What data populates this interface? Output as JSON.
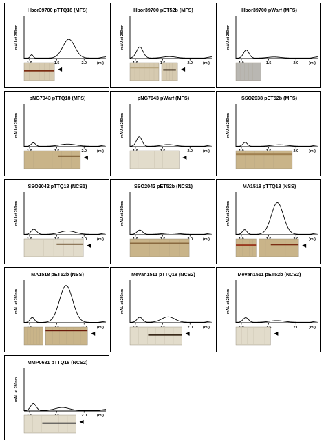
{
  "y_axis_label": "mAU at 280nm",
  "chart_data": [
    {
      "type": "line",
      "title": "Hbor39700 pTTQ18 (MFS)",
      "x_unit": "(ml)",
      "xlim": [
        0.9,
        2.4
      ],
      "ylim": [
        0,
        10
      ],
      "xticks": [
        "1.0",
        "1.5",
        "2.0"
      ],
      "peaks": [
        {
          "pos": 1.04,
          "h": 0.8,
          "w": 0.025
        },
        {
          "pos": 1.72,
          "h": 4.4,
          "w": 0.11
        }
      ],
      "base": 0.1,
      "gels": [
        {
          "w": 0.42,
          "tone": "light",
          "bands": [
            {
              "y": 0.45,
              "x0": 0.0,
              "x1": 1.0,
              "c": "#7a2c12"
            }
          ]
        }
      ],
      "arrow": true
    },
    {
      "type": "line",
      "title": "Hbor39700 pET52b (MFS)",
      "x_unit": "(ml)",
      "xlim": [
        0.9,
        2.4
      ],
      "ylim": [
        0,
        10
      ],
      "xticks": [
        "1.0",
        "1.5",
        "2.0"
      ],
      "peaks": [
        {
          "pos": 1.08,
          "h": 2.6,
          "w": 0.06
        },
        {
          "pos": 1.62,
          "h": 0.35,
          "w": 0.12
        }
      ],
      "base": 0.1,
      "gels": [
        {
          "w": 0.4,
          "tone": "light",
          "bands": [
            {
              "y": 0.28,
              "x0": 0.0,
              "x1": 1.0,
              "c": "#b8a680"
            }
          ]
        },
        {
          "w": 0.22,
          "tone": "light",
          "bands": [
            {
              "y": 0.4,
              "x0": 0.1,
              "x1": 0.9,
              "c": "#3a2a1a"
            }
          ]
        }
      ],
      "arrow": true
    },
    {
      "type": "line",
      "title": "Hbor39700 pWarf (MFS)",
      "x_unit": "(ml)",
      "xlim": [
        0.9,
        2.4
      ],
      "ylim": [
        0,
        10
      ],
      "xticks": [
        "1.0",
        "1.5",
        "2.0"
      ],
      "peaks": [
        {
          "pos": 1.09,
          "h": 1.9,
          "w": 0.05
        },
        {
          "pos": 1.6,
          "h": 0.25,
          "w": 0.12
        }
      ],
      "base": 0.1,
      "gels": [
        {
          "w": 0.35,
          "tone": "grey",
          "bands": []
        }
      ],
      "arrow": false
    },
    {
      "type": "line",
      "title": "pNG7043 pTTQ18 (MFS)",
      "x_unit": "(ml)",
      "xlim": [
        0.9,
        2.4
      ],
      "ylim": [
        0,
        10
      ],
      "xticks": [
        "1.0",
        "1.5",
        "2.0"
      ],
      "peaks": [
        {
          "pos": 1.07,
          "h": 0.8,
          "w": 0.04
        },
        {
          "pos": 1.7,
          "h": 0.5,
          "w": 0.15
        }
      ],
      "base": 0.1,
      "gels": [
        {
          "w": 0.78,
          "tone": "tan",
          "bands": [
            {
              "y": 0.3,
              "x0": 0.6,
              "x1": 1.0,
              "c": "#7a5a30"
            }
          ]
        }
      ],
      "arrow": true
    },
    {
      "type": "line",
      "title": "pNG7043 pWarf (MFS)",
      "x_unit": "(ml)",
      "xlim": [
        0.9,
        2.4
      ],
      "ylim": [
        0,
        10
      ],
      "xticks": [
        "1.0",
        "1.5",
        "2.0"
      ],
      "peaks": [
        {
          "pos": 1.07,
          "h": 2.2,
          "w": 0.05
        },
        {
          "pos": 1.6,
          "h": 0.4,
          "w": 0.12
        }
      ],
      "base": 0.1,
      "gels": [
        {
          "w": 0.68,
          "tone": "pale",
          "bands": []
        }
      ],
      "arrow": true
    },
    {
      "type": "line",
      "title": "SSO2938 pET52b (MFS)",
      "x_unit": "(ml)",
      "xlim": [
        0.9,
        2.4
      ],
      "ylim": [
        0,
        10
      ],
      "xticks": [
        "1.0",
        "1.5",
        "2.0"
      ],
      "peaks": [
        {
          "pos": 1.07,
          "h": 0.9,
          "w": 0.04
        },
        {
          "pos": 1.7,
          "h": 0.35,
          "w": 0.14
        }
      ],
      "base": 0.1,
      "gels": [
        {
          "w": 0.78,
          "tone": "tan",
          "bands": [
            {
              "y": 0.2,
              "x0": 0.0,
              "x1": 1.0,
              "c": "#a08050"
            }
          ]
        }
      ],
      "arrow": false
    },
    {
      "type": "line",
      "title": "SSO2042 pTTQ18 (NCS1)",
      "x_unit": "(ml)",
      "xlim": [
        0.9,
        2.4
      ],
      "ylim": [
        0,
        10
      ],
      "xticks": [
        "1.0",
        "1.5",
        "2.0"
      ],
      "peaks": [
        {
          "pos": 1.08,
          "h": 1.2,
          "w": 0.05
        },
        {
          "pos": 1.7,
          "h": 0.8,
          "w": 0.14
        }
      ],
      "base": 0.1,
      "gels": [
        {
          "w": 0.82,
          "tone": "pale",
          "bands": [
            {
              "y": 0.3,
              "x0": 0.55,
              "x1": 1.0,
              "c": "#7a6040"
            }
          ]
        }
      ],
      "arrow": true
    },
    {
      "type": "line",
      "title": "SSO2042 pET52b (NCS1)",
      "x_unit": "(ml)",
      "xlim": [
        0.9,
        2.4
      ],
      "ylim": [
        0,
        10
      ],
      "xticks": [
        "1.0",
        "1.5",
        "2.0"
      ],
      "peaks": [
        {
          "pos": 1.08,
          "h": 1.0,
          "w": 0.05
        },
        {
          "pos": 1.65,
          "h": 0.3,
          "w": 0.14
        }
      ],
      "base": 0.1,
      "gels": [
        {
          "w": 0.82,
          "tone": "tan",
          "bands": [
            {
              "y": 0.25,
              "x0": 0.0,
              "x1": 1.0,
              "c": "#8a6a40"
            }
          ]
        }
      ],
      "arrow": false
    },
    {
      "type": "line",
      "title": "MA1518 pTTQ18 (NSS)",
      "x_unit": "(ml)",
      "xlim": [
        0.9,
        2.4
      ],
      "ylim": [
        0,
        10
      ],
      "xticks": [
        "1.0",
        "1.5",
        "2.0"
      ],
      "peaks": [
        {
          "pos": 1.06,
          "h": 1.1,
          "w": 0.04
        },
        {
          "pos": 1.66,
          "h": 7.4,
          "w": 0.11
        }
      ],
      "base": 0.1,
      "gels": [
        {
          "w": 0.28,
          "tone": "tan",
          "bands": [
            {
              "y": 0.35,
              "x0": 0.0,
              "x1": 1.0,
              "c": "#9a3a20"
            }
          ]
        },
        {
          "w": 0.55,
          "tone": "tan",
          "bands": [
            {
              "y": 0.32,
              "x0": 0.3,
              "x1": 1.0,
              "c": "#7a2c12"
            }
          ]
        }
      ],
      "arrow": true
    },
    {
      "type": "line",
      "title": "MA1518 pET52b (NSS)",
      "x_unit": "(ml)",
      "xlim": [
        0.9,
        2.4
      ],
      "ylim": [
        0,
        12
      ],
      "xticks": [
        "1.0",
        "1.5",
        "2.0"
      ],
      "peaks": [
        {
          "pos": 1.05,
          "h": 1.4,
          "w": 0.04
        },
        {
          "pos": 1.67,
          "h": 10.4,
          "w": 0.12
        }
      ],
      "base": 0.1,
      "gels": [
        {
          "w": 0.26,
          "tone": "tan",
          "bands": []
        },
        {
          "w": 0.58,
          "tone": "tan",
          "bands": [
            {
              "y": 0.2,
              "x0": 0.0,
              "x1": 1.0,
              "c": "#6a1a0a"
            }
          ]
        }
      ],
      "arrow": true
    },
    {
      "type": "line",
      "title": "Mevan1511 pTTQ18 (NCS2)",
      "x_unit": "(ml)",
      "xlim": [
        0.9,
        2.4
      ],
      "ylim": [
        0,
        10
      ],
      "xticks": [
        "1.0",
        "1.5",
        "2.0"
      ],
      "peaks": [
        {
          "pos": 1.08,
          "h": 1.2,
          "w": 0.05
        },
        {
          "pos": 1.6,
          "h": 1.3,
          "w": 0.12
        }
      ],
      "base": 0.1,
      "gels": [
        {
          "w": 0.72,
          "tone": "pale",
          "bands": [
            {
              "y": 0.45,
              "x0": 0.35,
              "x1": 1.0,
              "c": "#3a2a1a"
            }
          ]
        }
      ],
      "arrow": true
    },
    {
      "type": "line",
      "title": "Mevan1511 pET52b (NCS2)",
      "x_unit": "(ml)",
      "xlim": [
        0.9,
        2.4
      ],
      "ylim": [
        0,
        10
      ],
      "xticks": [
        "1.0",
        "1.5",
        "2.0"
      ],
      "peaks": [
        {
          "pos": 1.08,
          "h": 1.1,
          "w": 0.05
        },
        {
          "pos": 1.65,
          "h": 0.4,
          "w": 0.14
        }
      ],
      "base": 0.1,
      "gels": [
        {
          "w": 0.48,
          "tone": "pale",
          "bands": []
        }
      ],
      "arrow": true
    },
    {
      "type": "line",
      "title": "MMP0681 pTTQ18 (NCS2)",
      "x_unit": "(ml)",
      "xlim": [
        0.9,
        2.4
      ],
      "ylim": [
        0,
        10
      ],
      "xticks": [
        "1.0",
        "1.5",
        "2.0"
      ],
      "peaks": [
        {
          "pos": 1.07,
          "h": 1.6,
          "w": 0.05
        },
        {
          "pos": 1.6,
          "h": 0.7,
          "w": 0.13
        }
      ],
      "base": 0.1,
      "gels": [
        {
          "w": 0.72,
          "tone": "pale",
          "bands": [
            {
              "y": 0.45,
              "x0": 0.35,
              "x1": 1.0,
              "c": "#3a3a3a"
            }
          ]
        }
      ],
      "arrow": true
    }
  ]
}
